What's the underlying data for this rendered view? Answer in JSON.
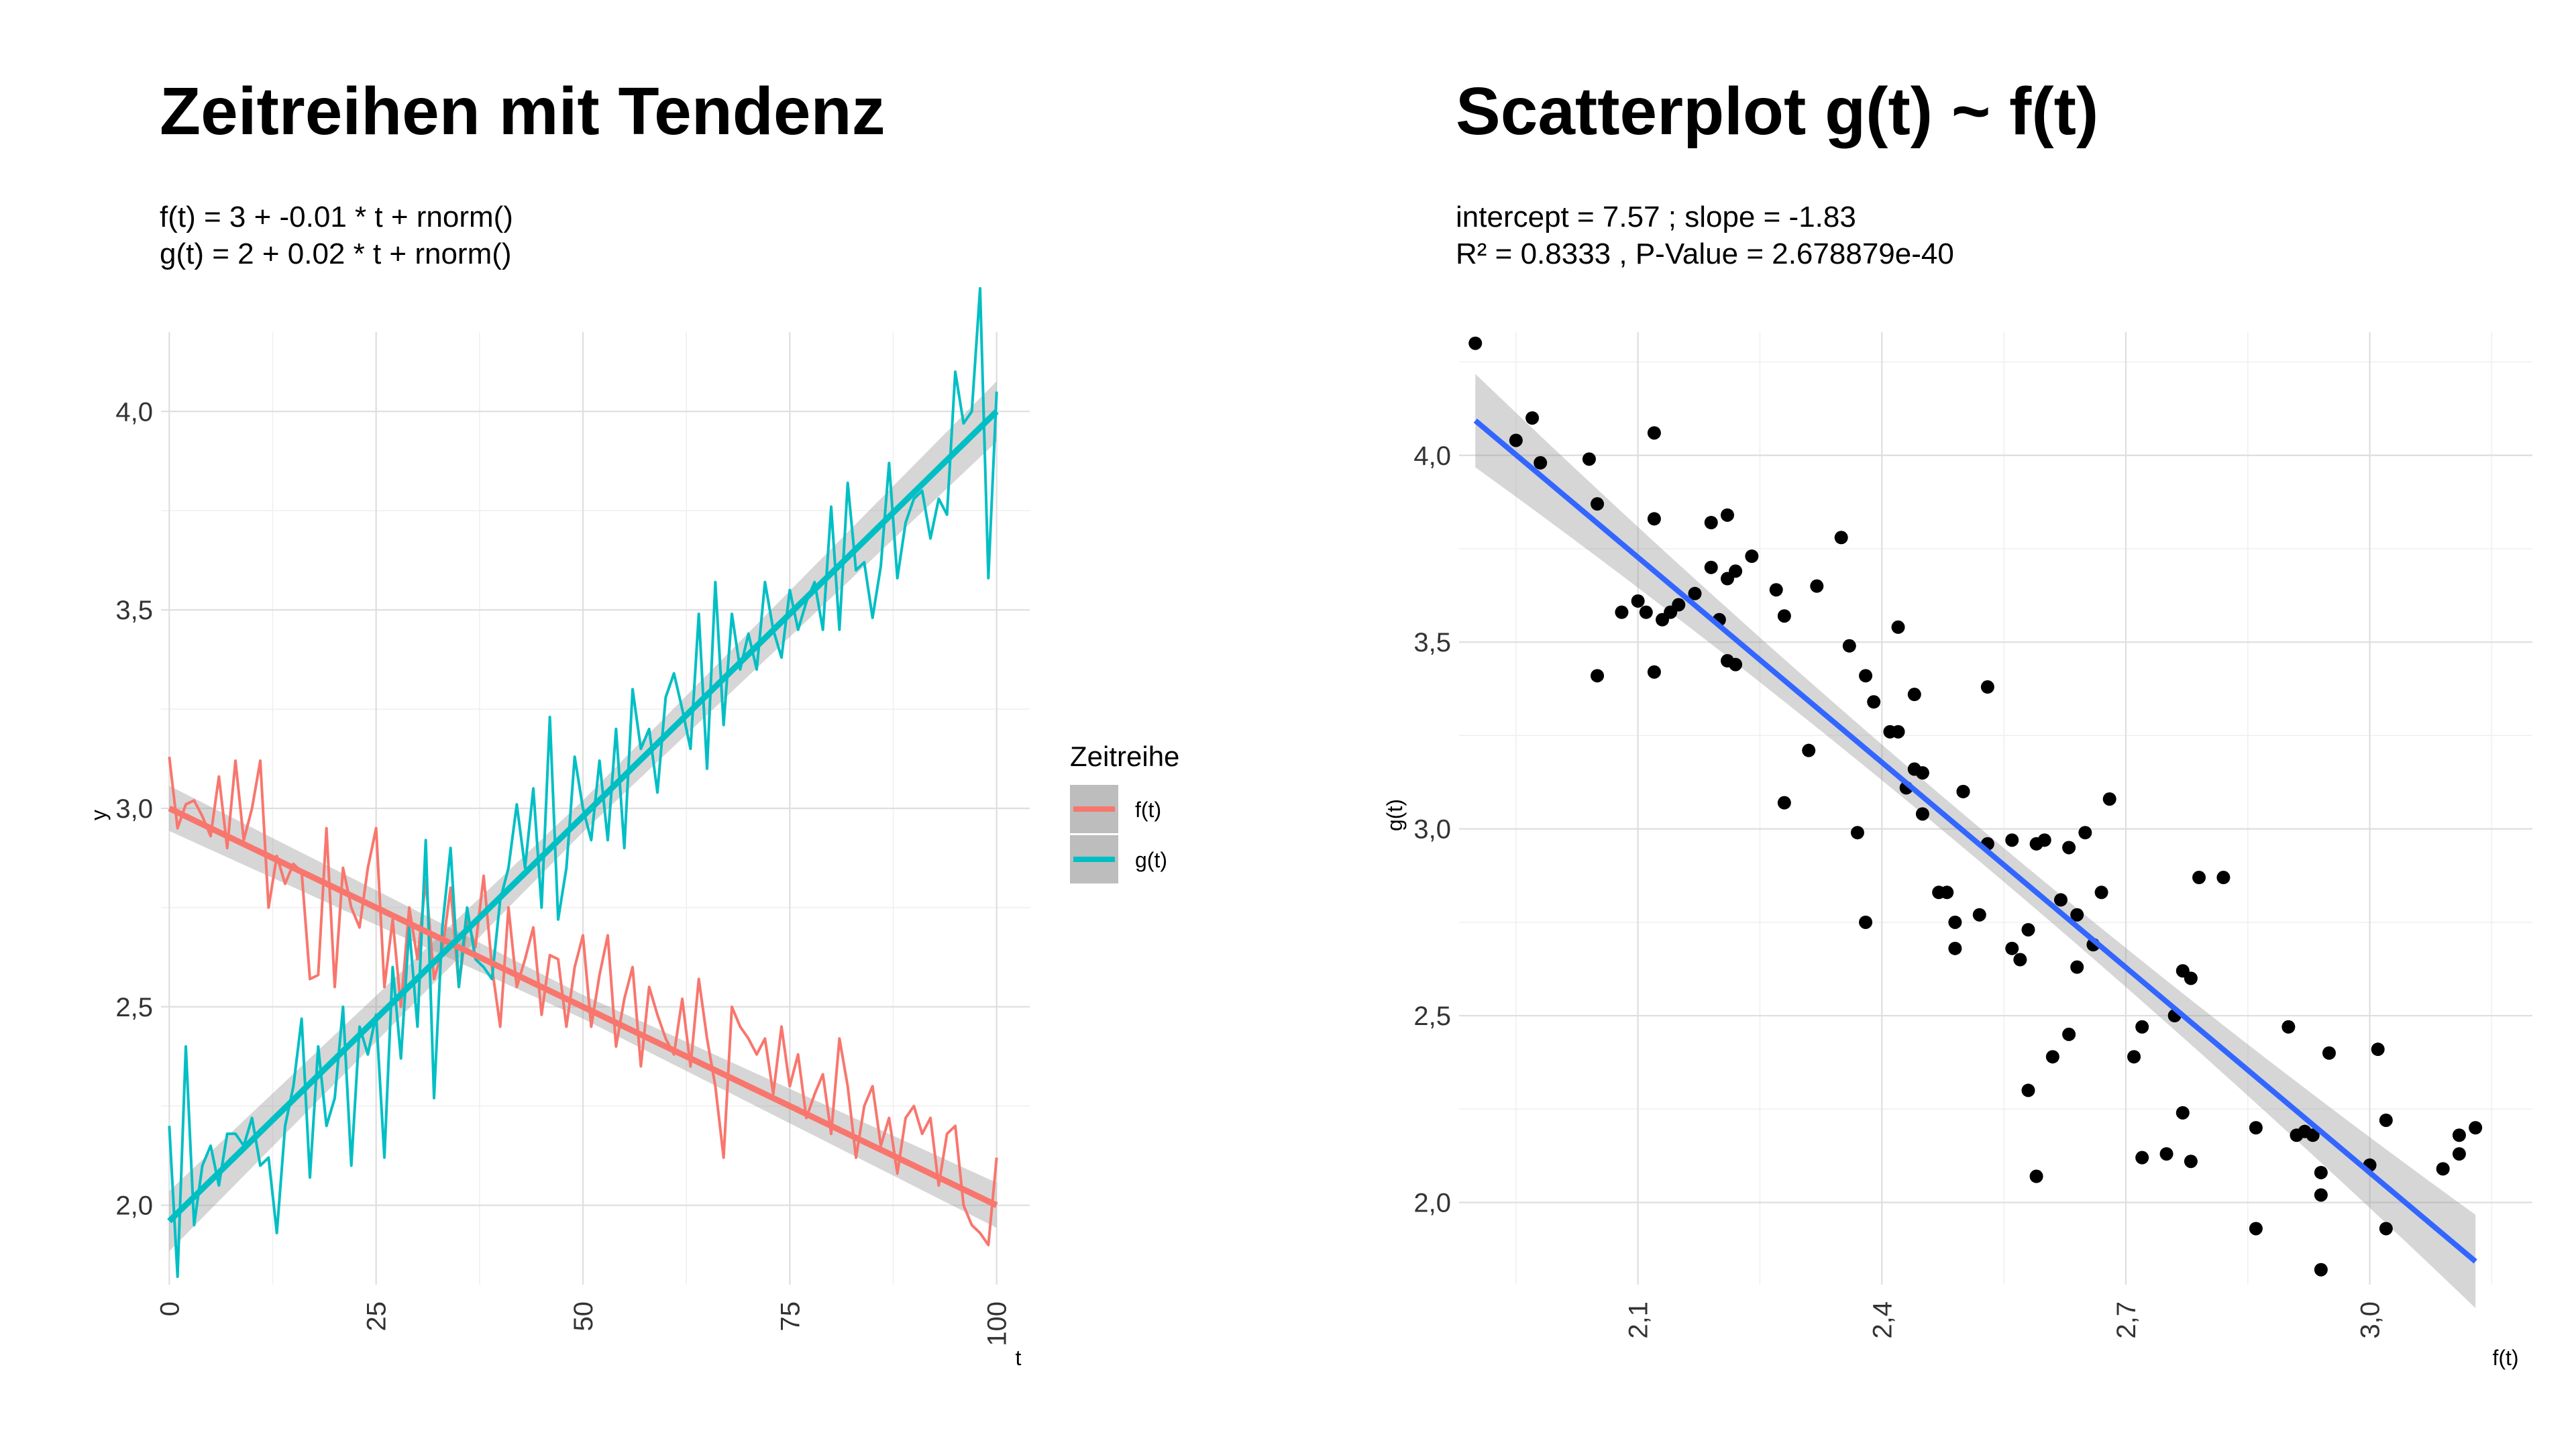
{
  "chart_data": [
    {
      "type": "line",
      "title": "Zeitreihen mit Tendenz",
      "subtitle_lines": [
        "f(t) = 3 + -0.01 * t + rnorm()",
        "g(t) = 2 + 0.02 * t + rnorm()"
      ],
      "xlabel": "t",
      "ylabel": "y",
      "xlim": [
        -1,
        104
      ],
      "ylim": [
        1.8,
        4.2
      ],
      "x_ticks": [
        0,
        25,
        50,
        75,
        100
      ],
      "y_ticks": [
        2.0,
        2.5,
        3.0,
        3.5,
        4.0
      ],
      "y_tick_labels": [
        "2,0",
        "2,5",
        "3,0",
        "3,5",
        "4,0"
      ],
      "grid": true,
      "legend": {
        "title": "Zeitreihe",
        "position": "right",
        "entries": [
          "f(t)",
          "g(t)"
        ]
      },
      "series": [
        {
          "name": "f(t)",
          "color": "#F8766D",
          "trend": {
            "intercept": 3.0,
            "slope": -0.01,
            "band": 0.03
          },
          "values": [
            3.13,
            2.95,
            3.01,
            3.02,
            2.98,
            2.93,
            3.08,
            2.9,
            3.12,
            2.92,
            3.0,
            3.12,
            2.75,
            2.88,
            2.81,
            2.86,
            2.84,
            2.57,
            2.58,
            2.95,
            2.55,
            2.85,
            2.75,
            2.7,
            2.85,
            2.95,
            2.55,
            2.72,
            2.5,
            2.75,
            2.62,
            2.82,
            2.57,
            2.64,
            2.8,
            2.55,
            2.72,
            2.65,
            2.83,
            2.6,
            2.45,
            2.75,
            2.55,
            2.62,
            2.7,
            2.48,
            2.63,
            2.62,
            2.45,
            2.6,
            2.68,
            2.45,
            2.58,
            2.68,
            2.4,
            2.52,
            2.6,
            2.35,
            2.55,
            2.48,
            2.42,
            2.38,
            2.52,
            2.35,
            2.57,
            2.42,
            2.3,
            2.12,
            2.5,
            2.45,
            2.42,
            2.38,
            2.42,
            2.28,
            2.45,
            2.3,
            2.38,
            2.22,
            2.28,
            2.33,
            2.18,
            2.42,
            2.3,
            2.12,
            2.25,
            2.3,
            2.15,
            2.22,
            2.08,
            2.22,
            2.25,
            2.18,
            2.22,
            2.05,
            2.18,
            2.2,
            2.0,
            1.95,
            1.93,
            1.9,
            2.12
          ]
        },
        {
          "name": "g(t)",
          "color": "#00BFC4",
          "trend": {
            "intercept": 1.96,
            "slope": 0.0204,
            "band": 0.04
          },
          "values": [
            2.2,
            1.82,
            2.4,
            1.95,
            2.1,
            2.15,
            2.05,
            2.18,
            2.18,
            2.15,
            2.22,
            2.1,
            2.12,
            1.93,
            2.2,
            2.3,
            2.47,
            2.07,
            2.4,
            2.2,
            2.27,
            2.5,
            2.1,
            2.45,
            2.38,
            2.48,
            2.12,
            2.6,
            2.37,
            2.7,
            2.45,
            2.92,
            2.27,
            2.7,
            2.9,
            2.55,
            2.75,
            2.62,
            2.6,
            2.57,
            2.77,
            2.85,
            3.01,
            2.85,
            3.05,
            2.75,
            3.23,
            2.72,
            2.85,
            3.13,
            3.0,
            2.92,
            3.12,
            2.92,
            3.2,
            2.9,
            3.3,
            3.15,
            3.2,
            3.04,
            3.28,
            3.34,
            3.25,
            3.15,
            3.49,
            3.1,
            3.57,
            3.21,
            3.49,
            3.35,
            3.44,
            3.35,
            3.57,
            3.45,
            3.38,
            3.55,
            3.45,
            3.52,
            3.57,
            3.45,
            3.76,
            3.45,
            3.82,
            3.6,
            3.62,
            3.48,
            3.61,
            3.87,
            3.58,
            3.72,
            3.78,
            3.8,
            3.68,
            3.78,
            3.74,
            4.1,
            3.97,
            4.0,
            4.31,
            3.58,
            4.05
          ]
        }
      ]
    },
    {
      "type": "scatter",
      "title": "Scatterplot g(t) ~ f(t)",
      "subtitle_lines": [
        "intercept = 7.57 ; slope = -1.83",
        "R² = 0.8333 , P-Value = 2.678879e-40"
      ],
      "xlabel": "f(t)",
      "ylabel": "g(t)",
      "xlim": [
        1.88,
        3.2
      ],
      "ylim": [
        1.78,
        4.33
      ],
      "x_ticks": [
        2.1,
        2.4,
        2.7,
        3.0
      ],
      "x_tick_labels": [
        "2,1",
        "2,4",
        "2,7",
        "3,0"
      ],
      "y_ticks": [
        2.0,
        2.5,
        3.0,
        3.5,
        4.0
      ],
      "y_tick_labels": [
        "2,0",
        "2,5",
        "3,0",
        "3,5",
        "4,0"
      ],
      "grid": true,
      "fit": {
        "intercept": 7.57,
        "slope": -1.83,
        "color": "#3366FF",
        "x_range": [
          1.9,
          3.13
        ]
      },
      "points": {
        "color": "#000000",
        "xy": [
          [
            1.9,
            4.3
          ],
          [
            1.95,
            4.04
          ],
          [
            1.97,
            4.1
          ],
          [
            1.98,
            3.98
          ],
          [
            2.04,
            3.99
          ],
          [
            2.05,
            3.87
          ],
          [
            2.05,
            3.41
          ],
          [
            2.08,
            3.58
          ],
          [
            2.1,
            3.61
          ],
          [
            2.11,
            3.58
          ],
          [
            2.12,
            3.83
          ],
          [
            2.12,
            3.42
          ],
          [
            2.12,
            4.06
          ],
          [
            2.13,
            3.56
          ],
          [
            2.14,
            3.58
          ],
          [
            2.15,
            3.6
          ],
          [
            2.17,
            3.63
          ],
          [
            2.19,
            3.7
          ],
          [
            2.19,
            3.82
          ],
          [
            2.2,
            3.56
          ],
          [
            2.21,
            3.67
          ],
          [
            2.21,
            3.45
          ],
          [
            2.21,
            3.84
          ],
          [
            2.22,
            3.44
          ],
          [
            2.22,
            3.69
          ],
          [
            2.24,
            3.73
          ],
          [
            2.27,
            3.64
          ],
          [
            2.28,
            3.57
          ],
          [
            2.28,
            3.07
          ],
          [
            2.31,
            3.21
          ],
          [
            2.32,
            3.65
          ],
          [
            2.35,
            3.78
          ],
          [
            2.36,
            3.49
          ],
          [
            2.37,
            2.99
          ],
          [
            2.38,
            3.41
          ],
          [
            2.38,
            2.75
          ],
          [
            2.39,
            3.34
          ],
          [
            2.41,
            3.26
          ],
          [
            2.42,
            3.26
          ],
          [
            2.42,
            3.54
          ],
          [
            2.43,
            3.11
          ],
          [
            2.44,
            3.36
          ],
          [
            2.44,
            3.16
          ],
          [
            2.45,
            3.15
          ],
          [
            2.45,
            3.04
          ],
          [
            2.47,
            2.83
          ],
          [
            2.48,
            2.83
          ],
          [
            2.49,
            2.75
          ],
          [
            2.49,
            2.68
          ],
          [
            2.5,
            3.1
          ],
          [
            2.5,
            3.1
          ],
          [
            2.52,
            2.77
          ],
          [
            2.53,
            2.96
          ],
          [
            2.53,
            3.38
          ],
          [
            2.56,
            2.97
          ],
          [
            2.56,
            2.68
          ],
          [
            2.57,
            2.65
          ],
          [
            2.58,
            2.73
          ],
          [
            2.58,
            2.3
          ],
          [
            2.59,
            2.96
          ],
          [
            2.59,
            2.07
          ],
          [
            2.6,
            2.97
          ],
          [
            2.61,
            2.39
          ],
          [
            2.62,
            2.81
          ],
          [
            2.63,
            2.95
          ],
          [
            2.63,
            2.45
          ],
          [
            2.64,
            2.63
          ],
          [
            2.64,
            2.77
          ],
          [
            2.65,
            2.99
          ],
          [
            2.66,
            2.69
          ],
          [
            2.67,
            2.83
          ],
          [
            2.68,
            3.08
          ],
          [
            2.71,
            2.39
          ],
          [
            2.72,
            2.12
          ],
          [
            2.72,
            2.47
          ],
          [
            2.75,
            2.13
          ],
          [
            2.76,
            2.5
          ],
          [
            2.77,
            2.24
          ],
          [
            2.77,
            2.62
          ],
          [
            2.78,
            2.6
          ],
          [
            2.78,
            2.11
          ],
          [
            2.79,
            2.87
          ],
          [
            2.82,
            2.87
          ],
          [
            2.86,
            1.93
          ],
          [
            2.86,
            2.2
          ],
          [
            2.9,
            2.47
          ],
          [
            2.91,
            2.18
          ],
          [
            2.92,
            2.19
          ],
          [
            2.93,
            2.18
          ],
          [
            2.94,
            1.82
          ],
          [
            2.94,
            2.08
          ],
          [
            2.94,
            2.02
          ],
          [
            2.95,
            2.4
          ],
          [
            3.0,
            2.1
          ],
          [
            3.01,
            2.41
          ],
          [
            3.02,
            2.22
          ],
          [
            3.02,
            1.93
          ],
          [
            3.09,
            2.09
          ],
          [
            3.11,
            2.13
          ],
          [
            3.11,
            2.18
          ],
          [
            3.13,
            2.2
          ]
        ]
      }
    }
  ]
}
